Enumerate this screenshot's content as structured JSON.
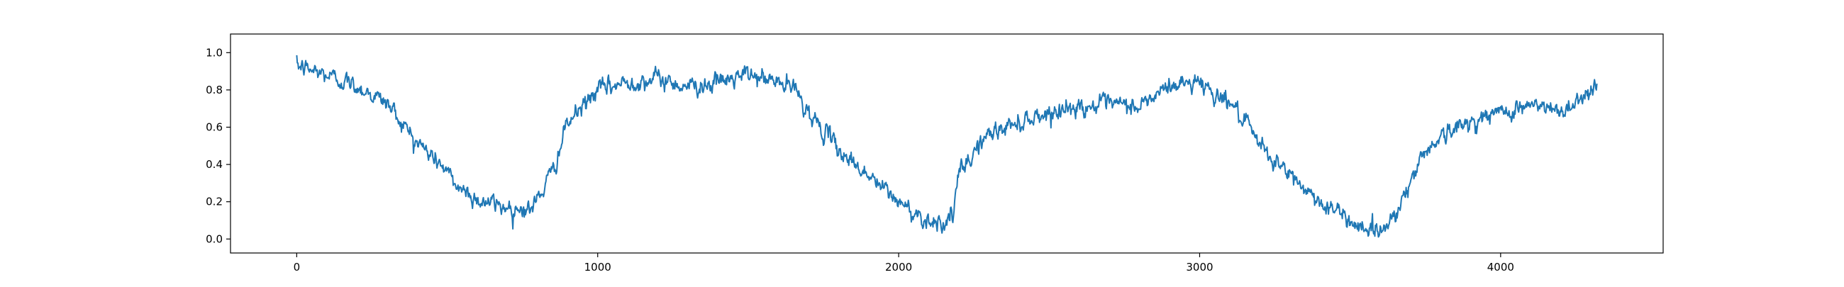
{
  "chart_data": {
    "type": "line",
    "title": "",
    "xlabel": "",
    "ylabel": "",
    "xlim": [
      -220,
      4540
    ],
    "ylim": [
      -0.075,
      1.1
    ],
    "x_ticks": [
      0,
      1000,
      2000,
      3000,
      4000
    ],
    "x_tick_labels": [
      "0",
      "1000",
      "2000",
      "3000",
      "4000"
    ],
    "y_ticks": [
      0.0,
      0.2,
      0.4,
      0.6,
      0.8,
      1.0
    ],
    "y_tick_labels": [
      "0.0",
      "0.2",
      "0.4",
      "0.6",
      "0.8",
      "1.0"
    ],
    "grid": false,
    "legend": "none",
    "series": [
      {
        "color": "#1f77b4",
        "x": [
          0,
          100,
          200,
          300,
          400,
          480,
          500,
          520,
          540,
          600,
          700,
          780,
          850,
          900,
          1000,
          1100,
          1200,
          1300,
          1400,
          1500,
          1600,
          1660,
          1700,
          1800,
          1900,
          2000,
          2050,
          2100,
          2150,
          2180,
          2200,
          2230,
          2260,
          2300,
          2400,
          2500,
          2600,
          2700,
          2800,
          2900,
          3000,
          3050,
          3100,
          3150,
          3200,
          3300,
          3400,
          3500,
          3550,
          3600,
          3650,
          3700,
          3750,
          3800,
          3900,
          4000,
          4100,
          4200,
          4250,
          4300,
          4320
        ],
        "y": [
          0.93,
          0.88,
          0.82,
          0.73,
          0.52,
          0.4,
          0.36,
          0.3,
          0.28,
          0.21,
          0.17,
          0.16,
          0.36,
          0.62,
          0.8,
          0.84,
          0.86,
          0.82,
          0.84,
          0.88,
          0.84,
          0.8,
          0.68,
          0.48,
          0.34,
          0.2,
          0.14,
          0.1,
          0.09,
          0.12,
          0.35,
          0.4,
          0.5,
          0.56,
          0.63,
          0.68,
          0.71,
          0.72,
          0.71,
          0.82,
          0.85,
          0.78,
          0.74,
          0.62,
          0.5,
          0.34,
          0.2,
          0.1,
          0.06,
          0.04,
          0.14,
          0.3,
          0.48,
          0.55,
          0.63,
          0.68,
          0.72,
          0.68,
          0.74,
          0.8,
          0.84
        ]
      }
    ]
  }
}
